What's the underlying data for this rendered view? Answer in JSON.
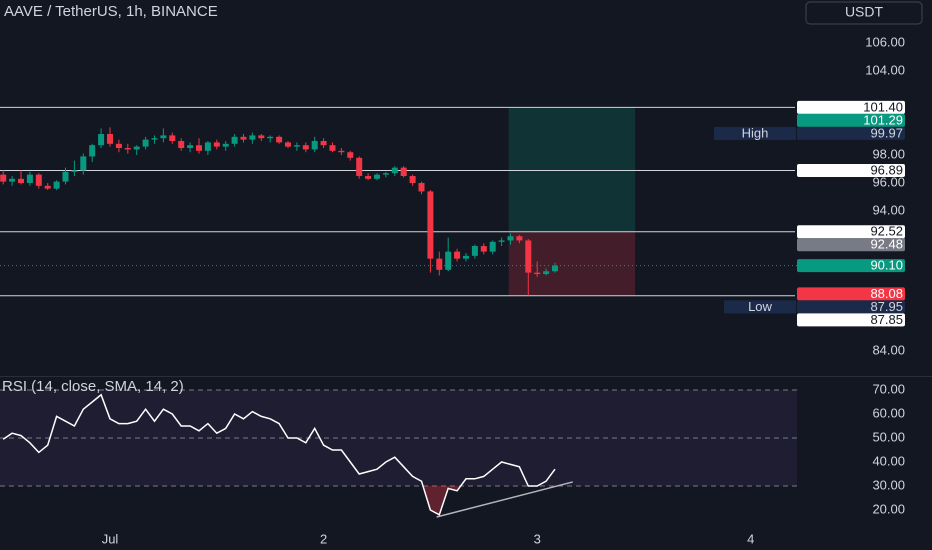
{
  "header": {
    "title": "AAVE / TetherUS, 1h, BINANCE",
    "currency_button": "USDT"
  },
  "chart_data": [
    {
      "type": "candlestick",
      "open": [
        96.6,
        96.1,
        96.3,
        96.0,
        96.6,
        95.8,
        95.6,
        96.1,
        96.8,
        96.9,
        97.9,
        98.7,
        99.5,
        98.8,
        98.5,
        98.4,
        98.6,
        99.1,
        99.2,
        99.4,
        99.0,
        98.5,
        98.7,
        98.3,
        98.9,
        98.6,
        98.8,
        99.3,
        99.1,
        99.4,
        99.2,
        99.3,
        98.9,
        98.6,
        98.7,
        98.4,
        99.0,
        98.7,
        98.3,
        98.2,
        97.8,
        96.5,
        96.3,
        96.6,
        96.7,
        97.1,
        96.5,
        96.0,
        95.4,
        90.6,
        89.8,
        91.1,
        90.6,
        90.8,
        91.5,
        91.1,
        91.8,
        91.9,
        92.2,
        91.9,
        89.6,
        89.5,
        89.7
      ],
      "high": [
        96.9,
        96.5,
        96.9,
        96.8,
        96.7,
        96.0,
        96.2,
        97.1,
        97.6,
        98.1,
        98.8,
        99.9,
        99.97,
        99.1,
        98.8,
        98.7,
        99.3,
        99.4,
        99.9,
        99.6,
        99.2,
        98.9,
        99.2,
        99.0,
        99.1,
        99.0,
        99.5,
        99.5,
        99.6,
        99.5,
        99.4,
        99.4,
        99.0,
        98.9,
        98.9,
        99.3,
        99.2,
        98.9,
        98.5,
        98.3,
        97.9,
        96.7,
        96.7,
        96.8,
        97.2,
        97.2,
        96.6,
        96.1,
        95.5,
        91.1,
        92.1,
        91.3,
        91.0,
        91.6,
        91.7,
        91.9,
        92.1,
        92.4,
        92.3,
        92.0,
        90.4,
        89.9,
        90.3
      ],
      "low": [
        95.9,
        95.8,
        95.9,
        95.8,
        95.6,
        95.5,
        95.5,
        95.9,
        96.5,
        96.6,
        97.5,
        98.5,
        98.6,
        98.2,
        98.1,
        98.0,
        98.4,
        98.8,
        98.9,
        98.8,
        98.3,
        98.2,
        98.1,
        98.0,
        98.4,
        98.3,
        98.6,
        98.9,
        98.8,
        99.0,
        98.9,
        98.8,
        98.5,
        98.3,
        98.2,
        98.2,
        98.5,
        98.2,
        98.0,
        97.6,
        96.3,
        96.2,
        96.2,
        96.4,
        96.5,
        96.4,
        95.8,
        95.2,
        89.6,
        89.4,
        89.7,
        90.4,
        90.4,
        90.6,
        90.9,
        90.9,
        91.5,
        91.6,
        91.7,
        87.95,
        89.3,
        89.4,
        89.6
      ],
      "close": [
        96.1,
        96.3,
        96.0,
        96.6,
        95.8,
        95.6,
        96.1,
        96.8,
        96.9,
        97.9,
        98.7,
        99.5,
        98.8,
        98.5,
        98.4,
        98.6,
        99.1,
        99.2,
        99.4,
        99.0,
        98.5,
        98.7,
        98.3,
        98.9,
        98.6,
        98.8,
        99.3,
        99.1,
        99.4,
        99.2,
        99.3,
        98.9,
        98.6,
        98.7,
        98.4,
        99.0,
        98.7,
        98.3,
        98.2,
        97.8,
        96.5,
        96.3,
        96.6,
        96.7,
        97.1,
        96.5,
        96.0,
        95.4,
        90.6,
        89.8,
        91.1,
        90.6,
        90.8,
        91.5,
        91.1,
        91.8,
        91.9,
        92.2,
        91.9,
        89.6,
        89.5,
        89.7,
        90.1
      ],
      "up_color": "#089981",
      "down_color": "#f23645",
      "xlim": [
        -0.36,
        89.53
      ],
      "xticks": [
        {
          "value": 12,
          "label": "Jul"
        },
        {
          "value": 36,
          "label": "2"
        },
        {
          "value": 60,
          "label": "3"
        },
        {
          "value": 84,
          "label": "4"
        }
      ],
      "ylim": [
        82.29,
        109.07
      ],
      "yticks": [
        {
          "value": 106,
          "label": "106.00"
        },
        {
          "value": 104,
          "label": "104.00"
        },
        {
          "value": 98,
          "label": "98.00"
        },
        {
          "value": 96,
          "label": "96.00"
        },
        {
          "value": 94,
          "label": "94.00"
        },
        {
          "value": 92,
          "label": "92.00"
        },
        {
          "value": 86,
          "label": "86.00"
        },
        {
          "value": 84,
          "label": "84.00"
        }
      ],
      "levels": [
        101.4,
        96.89,
        92.52,
        87.95
      ],
      "position": {
        "x": [
          56.8,
          71.0
        ],
        "target": 101.4,
        "entry": 92.52,
        "stop": 87.95
      },
      "price_labels": [
        {
          "value": 101.4,
          "label": "101.40",
          "style": "white"
        },
        {
          "value": 101.29,
          "label": "101.29",
          "style": "green"
        },
        {
          "value": 99.97,
          "label": "99.97",
          "tag": "High",
          "style": "navy"
        },
        {
          "value": 96.89,
          "label": "96.89",
          "style": "white"
        },
        {
          "value": 92.52,
          "label": "92.52",
          "style": "white"
        },
        {
          "value": 92.48,
          "label": "92.48",
          "style": "gray"
        },
        {
          "value": 90.1,
          "label": "90.10",
          "style": "green"
        },
        {
          "value": 88.08,
          "label": "88.08",
          "style": "red"
        },
        {
          "value": 87.95,
          "label": "87.95",
          "tag": "Low",
          "style": "navy"
        },
        {
          "value": 87.85,
          "label": "87.85",
          "style": "white"
        }
      ]
    },
    {
      "type": "line",
      "title": "RSI (14, close, SMA, 14, 2)",
      "color": "#ffffff",
      "values": [
        49.5,
        52,
        51,
        48,
        44,
        47,
        59,
        57,
        55,
        62,
        65,
        68,
        58,
        56,
        56,
        57,
        62,
        57,
        62,
        60,
        55,
        55,
        53,
        56,
        52,
        54,
        60,
        58,
        61,
        59,
        58,
        56,
        50,
        50,
        48,
        54,
        47,
        45,
        45,
        40,
        35,
        36,
        37,
        40,
        42,
        38,
        34,
        32,
        20,
        18,
        29,
        28,
        33,
        33,
        34,
        37,
        40,
        39,
        38,
        30,
        30,
        32,
        37
      ],
      "ylim": [
        11.67,
        75
      ],
      "yticks": [
        {
          "value": 70,
          "label": "70.00"
        },
        {
          "value": 60,
          "label": "60.00"
        },
        {
          "value": 50,
          "label": "50.00"
        },
        {
          "value": 40,
          "label": "40.00"
        },
        {
          "value": 30,
          "label": "30.00"
        },
        {
          "value": 20,
          "label": "20.00"
        }
      ],
      "levels": [
        70,
        50,
        30
      ],
      "trendline": {
        "x": [
          48.7,
          64
        ],
        "y": [
          17.1,
          31.7
        ],
        "color": "#b2b5be"
      }
    }
  ]
}
